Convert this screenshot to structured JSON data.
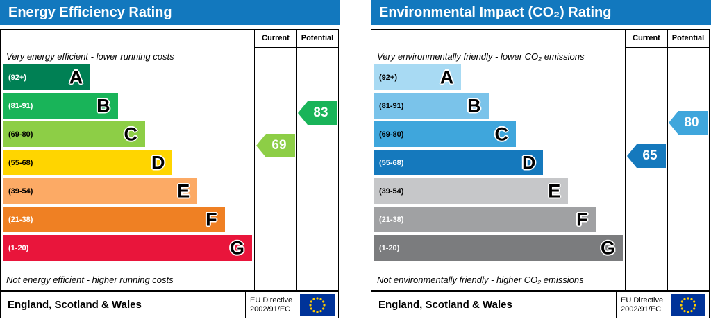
{
  "panels": [
    {
      "title": "Energy Efficiency Rating",
      "columns": {
        "current": "Current",
        "potential": "Potential"
      },
      "top_caption": "Very energy efficient - lower running costs",
      "bottom_caption": "Not energy efficient - higher running costs",
      "bands": [
        {
          "range": "(92+)",
          "letter": "A",
          "min": 92,
          "max": 100,
          "width_pct": 35,
          "color": "#008054",
          "range_color": "#ffffff"
        },
        {
          "range": "(81-91)",
          "letter": "B",
          "min": 81,
          "max": 91,
          "width_pct": 46,
          "color": "#19b459",
          "range_color": "#ffffff"
        },
        {
          "range": "(69-80)",
          "letter": "C",
          "min": 69,
          "max": 80,
          "width_pct": 57,
          "color": "#8dce46",
          "range_color": "#000000"
        },
        {
          "range": "(55-68)",
          "letter": "D",
          "min": 55,
          "max": 68,
          "width_pct": 68,
          "color": "#ffd500",
          "range_color": "#000000"
        },
        {
          "range": "(39-54)",
          "letter": "E",
          "min": 39,
          "max": 54,
          "width_pct": 78,
          "color": "#fcaa65",
          "range_color": "#000000"
        },
        {
          "range": "(21-38)",
          "letter": "F",
          "min": 21,
          "max": 38,
          "width_pct": 89,
          "color": "#ef8023",
          "range_color": "#ffffff"
        },
        {
          "range": "(1-20)",
          "letter": "G",
          "min": 1,
          "max": 20,
          "width_pct": 100,
          "color": "#e9153b",
          "range_color": "#ffffff"
        }
      ],
      "scores": {
        "current": {
          "value": 69,
          "color": "#8dce46"
        },
        "potential": {
          "value": 83,
          "color": "#19b459"
        }
      },
      "footer": {
        "region": "England, Scotland & Wales",
        "directive_line1": "EU Directive",
        "directive_line2": "2002/91/EC"
      }
    },
    {
      "title": "Environmental Impact (CO₂) Rating",
      "columns": {
        "current": "Current",
        "potential": "Potential"
      },
      "top_caption": "Very environmentally friendly - lower CO₂ emissions",
      "bottom_caption": "Not environmentally friendly - higher CO₂ emissions",
      "bands": [
        {
          "range": "(92+)",
          "letter": "A",
          "min": 92,
          "max": 100,
          "width_pct": 35,
          "color": "#a8daf3",
          "range_color": "#000000"
        },
        {
          "range": "(81-91)",
          "letter": "B",
          "min": 81,
          "max": 91,
          "width_pct": 46,
          "color": "#7ac3ea",
          "range_color": "#000000"
        },
        {
          "range": "(69-80)",
          "letter": "C",
          "min": 69,
          "max": 80,
          "width_pct": 57,
          "color": "#3fa6dc",
          "range_color": "#000000"
        },
        {
          "range": "(55-68)",
          "letter": "D",
          "min": 55,
          "max": 68,
          "width_pct": 68,
          "color": "#1579bd",
          "range_color": "#ffffff"
        },
        {
          "range": "(39-54)",
          "letter": "E",
          "min": 39,
          "max": 54,
          "width_pct": 78,
          "color": "#c6c7c9",
          "range_color": "#000000"
        },
        {
          "range": "(21-38)",
          "letter": "F",
          "min": 21,
          "max": 38,
          "width_pct": 89,
          "color": "#a0a1a3",
          "range_color": "#ffffff"
        },
        {
          "range": "(1-20)",
          "letter": "G",
          "min": 1,
          "max": 20,
          "width_pct": 100,
          "color": "#7b7c7e",
          "range_color": "#ffffff"
        }
      ],
      "scores": {
        "current": {
          "value": 65,
          "color": "#1579bd"
        },
        "potential": {
          "value": 80,
          "color": "#3fa6dc"
        }
      },
      "footer": {
        "region": "England, Scotland & Wales",
        "directive_line1": "EU Directive",
        "directive_line2": "2002/91/EC"
      }
    }
  ],
  "colors": {
    "header_bg": "#1278be",
    "eu_flag_bg": "#003399",
    "eu_flag_stars": "#ffcc00"
  },
  "chart_data": [
    {
      "type": "bar",
      "title": "Energy Efficiency Rating",
      "categories": [
        "A (92+)",
        "B (81-91)",
        "C (69-80)",
        "D (55-68)",
        "E (39-54)",
        "F (21-38)",
        "G (1-20)"
      ],
      "values": [
        35,
        46,
        57,
        68,
        78,
        89,
        100
      ],
      "values_note": "relative bar width, % of longest band",
      "current_rating": 69,
      "current_band": "C",
      "potential_rating": 83,
      "potential_band": "B",
      "top_caption": "Very energy efficient - lower running costs",
      "bottom_caption": "Not energy efficient - higher running costs",
      "footer": "England, Scotland & Wales",
      "directive": "EU Directive 2002/91/EC"
    },
    {
      "type": "bar",
      "title": "Environmental Impact (CO₂) Rating",
      "categories": [
        "A (92+)",
        "B (81-91)",
        "C (69-80)",
        "D (55-68)",
        "E (39-54)",
        "F (21-38)",
        "G (1-20)"
      ],
      "values": [
        35,
        46,
        57,
        68,
        78,
        89,
        100
      ],
      "values_note": "relative bar width, % of longest band",
      "current_rating": 65,
      "current_band": "D",
      "potential_rating": 80,
      "potential_band": "C",
      "top_caption": "Very environmentally friendly - lower CO₂ emissions",
      "bottom_caption": "Not environmentally friendly - higher CO₂ emissions",
      "footer": "England, Scotland & Wales",
      "directive": "EU Directive 2002/91/EC"
    }
  ]
}
